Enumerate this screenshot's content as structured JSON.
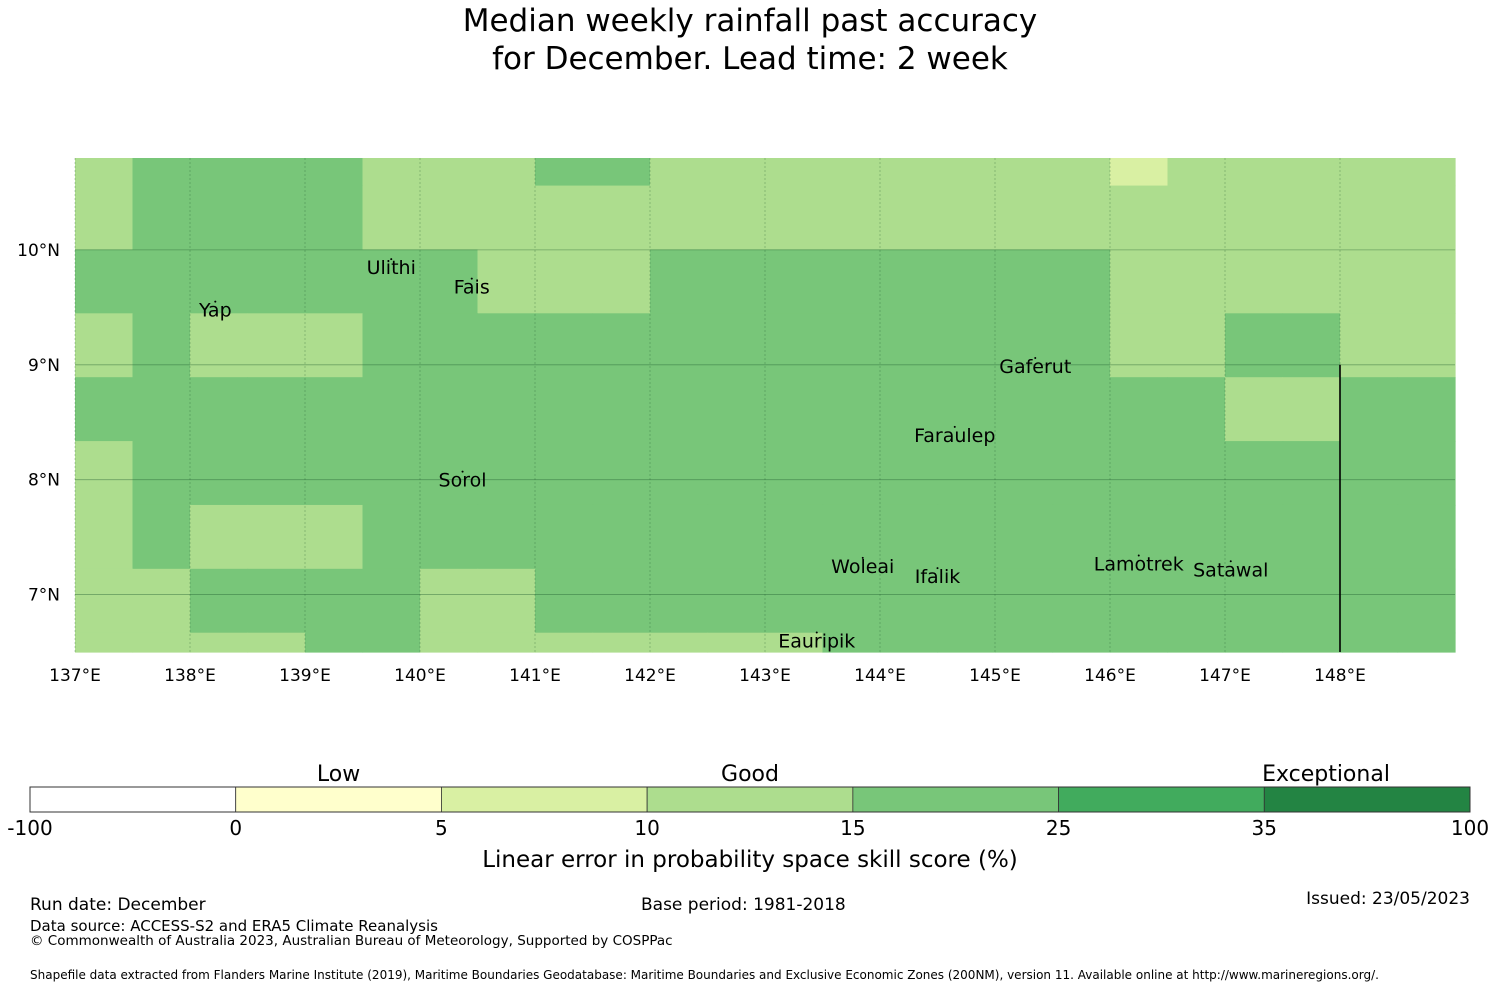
{
  "title": {
    "line1": "Median weekly rainfall past accuracy",
    "line2": "for December. Lead time: 2 week"
  },
  "map": {
    "lon_range": [
      137,
      149
    ],
    "lat_range": [
      6.5,
      10.8
    ],
    "x_ticks": [
      "137°E",
      "138°E",
      "139°E",
      "140°E",
      "141°E",
      "142°E",
      "143°E",
      "144°E",
      "145°E",
      "146°E",
      "147°E",
      "148°E"
    ],
    "y_ticks": [
      "10°N",
      "9°N",
      "8°N",
      "7°N"
    ],
    "cell_size_deg": [
      0.833,
      0.556
    ],
    "grid_rows_north_to_south": [
      [
        3,
        4,
        4,
        4,
        4,
        3,
        3,
        3,
        4,
        4,
        3,
        3,
        3,
        3,
        3,
        3,
        3,
        3,
        2,
        3,
        3,
        3,
        3,
        3
      ],
      [
        3,
        4,
        4,
        4,
        4,
        3,
        3,
        3,
        3,
        3,
        3,
        3,
        3,
        3,
        3,
        3,
        3,
        3,
        3,
        3,
        3,
        3,
        3,
        3
      ],
      [
        4,
        4,
        4,
        4,
        4,
        4,
        4,
        3,
        3,
        3,
        4,
        4,
        4,
        4,
        4,
        4,
        4,
        4,
        3,
        3,
        3,
        3,
        3,
        3
      ],
      [
        3,
        4,
        3,
        3,
        3,
        4,
        4,
        4,
        4,
        4,
        4,
        4,
        4,
        4,
        4,
        4,
        4,
        4,
        3,
        3,
        4,
        4,
        3,
        3
      ],
      [
        4,
        4,
        4,
        4,
        4,
        4,
        4,
        4,
        4,
        4,
        4,
        4,
        4,
        4,
        4,
        4,
        4,
        4,
        4,
        4,
        3,
        3,
        4,
        4
      ],
      [
        3,
        4,
        4,
        4,
        4,
        4,
        4,
        4,
        4,
        4,
        4,
        4,
        4,
        4,
        4,
        4,
        4,
        4,
        4,
        4,
        4,
        4,
        4,
        4
      ],
      [
        3,
        4,
        3,
        3,
        3,
        4,
        4,
        4,
        4,
        4,
        4,
        4,
        4,
        4,
        4,
        4,
        4,
        4,
        4,
        4,
        4,
        4,
        4,
        4
      ],
      [
        3,
        3,
        4,
        4,
        4,
        4,
        3,
        3,
        4,
        4,
        4,
        4,
        4,
        4,
        4,
        4,
        4,
        4,
        4,
        4,
        4,
        4,
        4,
        4
      ],
      [
        3,
        3,
        3,
        3,
        4,
        4,
        3,
        3,
        3,
        3,
        3,
        3,
        3,
        4,
        4,
        4,
        4,
        4,
        4,
        4,
        4,
        4,
        4,
        4
      ]
    ],
    "places": [
      {
        "name": "Ulithi",
        "lon": 139.75,
        "lat": 9.85
      },
      {
        "name": "Fais",
        "lon": 140.45,
        "lat": 9.68
      },
      {
        "name": "Yap",
        "lon": 138.22,
        "lat": 9.48
      },
      {
        "name": "Gaferut",
        "lon": 145.35,
        "lat": 8.99
      },
      {
        "name": "Faraulep",
        "lon": 144.65,
        "lat": 8.39
      },
      {
        "name": "Sorol",
        "lon": 140.37,
        "lat": 8.0
      },
      {
        "name": "Woleai",
        "lon": 143.85,
        "lat": 7.25
      },
      {
        "name": "Ifalik",
        "lon": 144.5,
        "lat": 7.16
      },
      {
        "name": "Lamotrek",
        "lon": 146.25,
        "lat": 7.27
      },
      {
        "name": "Satawal",
        "lon": 147.05,
        "lat": 7.22
      },
      {
        "name": "Eauripik",
        "lon": 143.45,
        "lat": 6.6
      }
    ],
    "boundary_line": {
      "lon": 148.0,
      "lat_from": 6.5,
      "lat_to": 9.0
    }
  },
  "legend": {
    "categories": [
      "Low",
      "Good",
      "Exceptional"
    ],
    "ticks": [
      "-100",
      "0",
      "5",
      "10",
      "15",
      "25",
      "35",
      "100"
    ],
    "colors": [
      "#ffffff",
      "#ffffcc",
      "#d9f0a3",
      "#addd8e",
      "#78c679",
      "#41ab5d",
      "#238443"
    ],
    "label": "Linear error in probability space skill score (%)"
  },
  "footer": {
    "run_date": "Run date: December",
    "base_period": "Base period: 1981-2018",
    "issued": "Issued: 23/05/2023",
    "data_source": "Data source: ACCESS-S2 and ERA5 Climate Reanalysis",
    "copyright": "© Commonwealth of Australia 2023, Australian Bureau of Meteorology, Supported by COSPPac",
    "shapefile": "Shapefile data extracted from Flanders Marine Institute (2019), Maritime Boundaries Geodatabase: Maritime Boundaries and Exclusive Economic Zones (200NM), version 11. Available online at http://www.marineregions.org/."
  }
}
